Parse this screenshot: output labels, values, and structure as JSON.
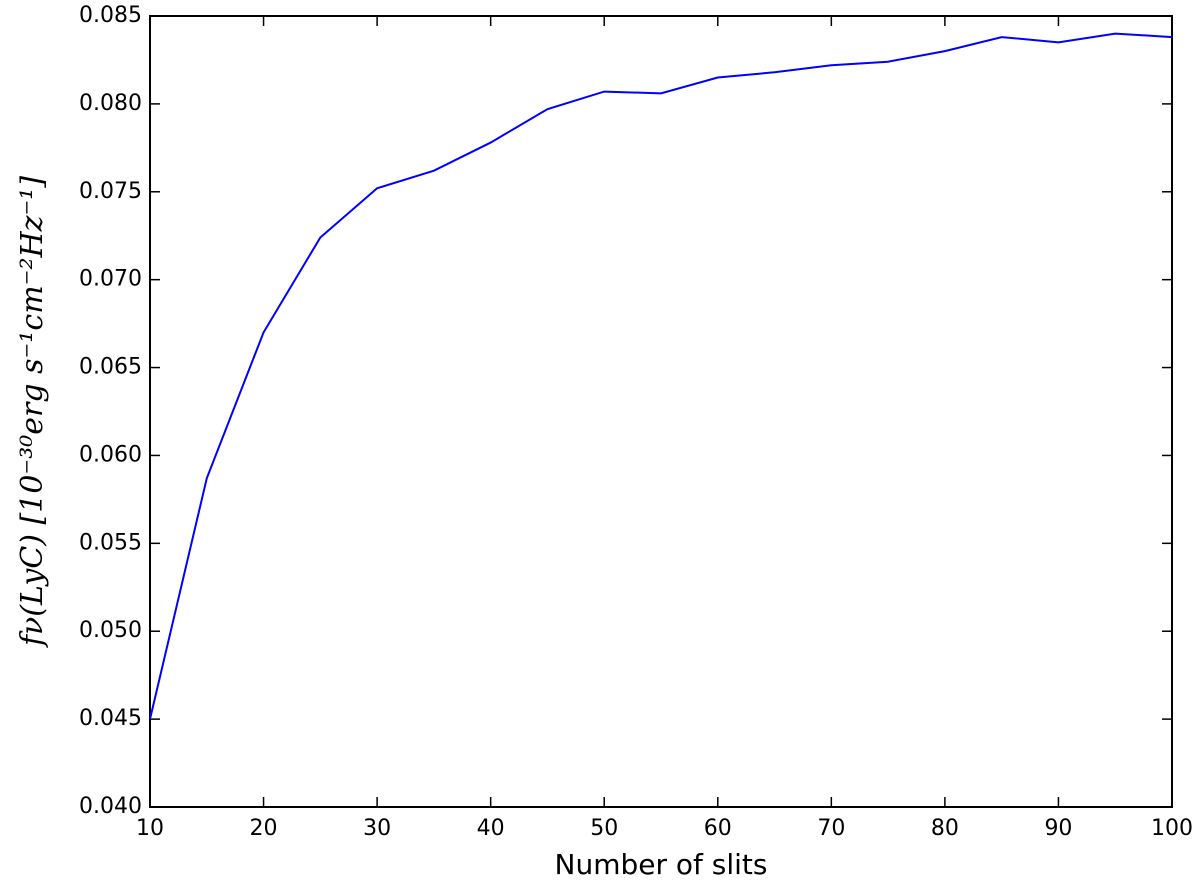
{
  "chart_data": {
    "type": "line",
    "xlabel": "Number of slits",
    "ylabel": "fν(LyC) [10⁻³⁰erg s⁻¹cm⁻²Hz⁻¹]",
    "x": [
      10,
      15,
      20,
      25,
      30,
      35,
      40,
      45,
      50,
      55,
      60,
      65,
      70,
      75,
      80,
      85,
      90,
      95,
      100
    ],
    "series": [
      {
        "color": "#0000ff",
        "values": [
          0.045,
          0.0587,
          0.067,
          0.0724,
          0.0752,
          0.0762,
          0.0778,
          0.0797,
          0.0807,
          0.0806,
          0.0815,
          0.0818,
          0.0822,
          0.0824,
          0.083,
          0.0838,
          0.0835,
          0.084,
          0.0838
        ]
      }
    ],
    "xlim": [
      10,
      100
    ],
    "xticks": [
      10,
      20,
      30,
      40,
      50,
      60,
      70,
      80,
      90,
      100
    ],
    "ylim": [
      0.04,
      0.085
    ],
    "yticks": [
      {
        "value": 0.04,
        "label": "0.040"
      },
      {
        "value": 0.045,
        "label": "0.045"
      },
      {
        "value": 0.05,
        "label": "0.050"
      },
      {
        "value": 0.055,
        "label": "0.055"
      },
      {
        "value": 0.06,
        "label": "0.060"
      },
      {
        "value": 0.065,
        "label": "0.065"
      },
      {
        "value": 0.07,
        "label": "0.070"
      },
      {
        "value": 0.075,
        "label": "0.075"
      },
      {
        "value": 0.08,
        "label": "0.080"
      },
      {
        "value": 0.085,
        "label": "0.085"
      }
    ],
    "grid": false
  }
}
